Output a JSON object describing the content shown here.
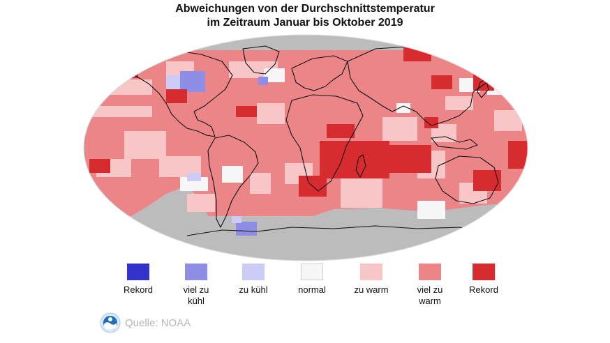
{
  "title": {
    "line1": "Abweichungen von der Durchschnittstemperatur",
    "line2": "im Zeitraum Januar bis Oktober 2019"
  },
  "colors": {
    "record_cold": "#3333cc",
    "much_colder": "#8e8ee6",
    "colder": "#ccccf7",
    "normal": "#f7f7f7",
    "warmer": "#f9c6c8",
    "much_warmer": "#ec8587",
    "record_warm": "#d62c30",
    "no_data": "#bcbcbc",
    "coastline": "#111111"
  },
  "legend": [
    {
      "label_line1": "Rekord",
      "label_line2": "",
      "color": "#3333cc"
    },
    {
      "label_line1": "viel zu",
      "label_line2": "kühl",
      "color": "#8e8ee6"
    },
    {
      "label_line1": "zu kühl",
      "label_line2": "",
      "color": "#ccccf7"
    },
    {
      "label_line1": "normal",
      "label_line2": "",
      "color": "#f7f7f7"
    },
    {
      "label_line1": "zu warm",
      "label_line2": "",
      "color": "#f9c6c8"
    },
    {
      "label_line1": "viel zu",
      "label_line2": "warm",
      "color": "#ec8587"
    },
    {
      "label_line1": "Rekord",
      "label_line2": "",
      "color": "#d62c30"
    }
  ],
  "source": {
    "text": "Quelle: NOAA",
    "logo_icon": "noaa-logo-icon"
  }
}
